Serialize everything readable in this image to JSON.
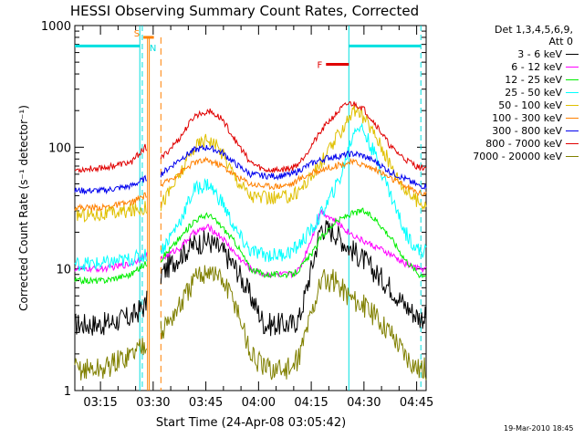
{
  "chart_data": {
    "type": "line",
    "title": "HESSI Observing Summary Count Rates, Corrected",
    "xlabel": "Start Time (24-Apr-08 03:05:42)",
    "ylabel": "Corrected Count Rate (s⁻¹ detector⁻¹)",
    "x_unit": "minutes after 03:05:42",
    "xlim": [
      2,
      102
    ],
    "ylim": [
      1,
      1000
    ],
    "y_scale": "log",
    "x_ticks": [
      {
        "x": 9.3,
        "label": "03:15"
      },
      {
        "x": 24.3,
        "label": "03:30"
      },
      {
        "x": 39.3,
        "label": "03:45"
      },
      {
        "x": 54.3,
        "label": "04:00"
      },
      {
        "x": 69.3,
        "label": "04:15"
      },
      {
        "x": 84.3,
        "label": "04:30"
      },
      {
        "x": 99.3,
        "label": "04:45"
      }
    ],
    "y_ticks": [
      {
        "y": 1,
        "label": "1"
      },
      {
        "y": 10,
        "label": "10"
      },
      {
        "y": 100,
        "label": "100"
      },
      {
        "y": 1000,
        "label": "1000"
      }
    ],
    "legend_header": [
      "Det 1,3,4,5,6,9,",
      "Att 0"
    ],
    "legend_position": "right, outside plot",
    "data_gaps": [
      [
        22.5,
        26.5
      ]
    ],
    "series": [
      {
        "name": "3 - 6 keV",
        "color": "#000000",
        "x": [
          2,
          10,
          18,
          22,
          26.5,
          32,
          36,
          40,
          44,
          48,
          52,
          56,
          60,
          64,
          66,
          70,
          72,
          76,
          80,
          84,
          88,
          92,
          96,
          100
        ],
        "y": [
          3.5,
          3.5,
          4,
          5,
          9,
          13,
          16,
          17,
          14,
          10,
          6,
          3.5,
          3.5,
          3.5,
          4,
          12,
          22,
          20,
          15,
          12,
          9,
          7,
          5,
          4
        ]
      },
      {
        "name": "6 - 12 keV",
        "color": "#ff00ff",
        "x": [
          2,
          10,
          18,
          22,
          26.5,
          32,
          36,
          40,
          44,
          48,
          52,
          56,
          60,
          64,
          66,
          70,
          72,
          76,
          80,
          84,
          88,
          92,
          96,
          100
        ],
        "y": [
          10,
          10,
          11,
          13,
          12,
          15,
          20,
          22,
          18,
          13,
          10,
          9,
          9,
          9,
          10,
          20,
          30,
          25,
          20,
          17,
          15,
          13,
          11,
          10
        ]
      },
      {
        "name": "12 - 25 keV",
        "color": "#00ee00",
        "x": [
          2,
          10,
          18,
          22,
          26.5,
          32,
          36,
          40,
          44,
          48,
          52,
          56,
          60,
          64,
          66,
          70,
          72,
          76,
          80,
          84,
          88,
          92,
          96,
          100
        ],
        "y": [
          8,
          8,
          9,
          11,
          12,
          18,
          25,
          28,
          22,
          16,
          10,
          9,
          9,
          9,
          10,
          14,
          18,
          24,
          28,
          30,
          25,
          18,
          12,
          9
        ]
      },
      {
        "name": "25 - 50 keV",
        "color": "#00ffff",
        "x": [
          2,
          10,
          18,
          22,
          26.5,
          32,
          36,
          40,
          44,
          48,
          52,
          56,
          60,
          64,
          66,
          70,
          74,
          78,
          80,
          82,
          84,
          88,
          92,
          96,
          100
        ],
        "y": [
          11,
          11,
          12,
          13,
          14,
          25,
          45,
          50,
          35,
          20,
          14,
          13,
          13,
          14,
          16,
          22,
          35,
          60,
          100,
          150,
          140,
          80,
          40,
          20,
          14
        ]
      },
      {
        "name": "50 - 100 keV",
        "color": "#e0c000",
        "x": [
          2,
          10,
          18,
          22,
          26.5,
          32,
          36,
          40,
          44,
          48,
          52,
          56,
          60,
          64,
          66,
          70,
          74,
          78,
          80,
          82,
          84,
          88,
          92,
          96,
          100
        ],
        "y": [
          28,
          28,
          30,
          32,
          34,
          60,
          100,
          120,
          90,
          55,
          40,
          38,
          38,
          40,
          45,
          60,
          90,
          140,
          180,
          200,
          180,
          120,
          70,
          45,
          35
        ]
      },
      {
        "name": "100 - 300 keV",
        "color": "#ff8000",
        "x": [
          2,
          10,
          18,
          22,
          26.5,
          32,
          36,
          40,
          44,
          48,
          52,
          56,
          60,
          64,
          66,
          70,
          74,
          78,
          80,
          82,
          84,
          88,
          92,
          96,
          100
        ],
        "y": [
          32,
          32,
          35,
          40,
          48,
          62,
          75,
          78,
          70,
          58,
          50,
          48,
          48,
          50,
          55,
          62,
          68,
          72,
          75,
          75,
          72,
          65,
          55,
          48,
          42
        ]
      },
      {
        "name": "300 - 800 keV",
        "color": "#0000ee",
        "x": [
          2,
          10,
          18,
          22,
          26.5,
          32,
          36,
          40,
          44,
          48,
          52,
          56,
          60,
          64,
          66,
          70,
          74,
          78,
          80,
          82,
          84,
          88,
          92,
          96,
          100
        ],
        "y": [
          44,
          44,
          48,
          55,
          60,
          80,
          95,
          100,
          90,
          72,
          60,
          58,
          58,
          60,
          65,
          75,
          82,
          85,
          88,
          88,
          85,
          75,
          62,
          55,
          48
        ]
      },
      {
        "name": "800 - 7000 keV",
        "color": "#e00000",
        "x": [
          2,
          10,
          18,
          22,
          26.5,
          32,
          36,
          40,
          44,
          48,
          52,
          56,
          60,
          64,
          66,
          70,
          74,
          78,
          80,
          82,
          84,
          88,
          92,
          96,
          100
        ],
        "y": [
          65,
          68,
          75,
          100,
          80,
          120,
          180,
          200,
          170,
          110,
          75,
          65,
          65,
          68,
          75,
          110,
          160,
          210,
          230,
          225,
          210,
          150,
          100,
          80,
          68
        ]
      },
      {
        "name": "7000 - 20000 keV",
        "color": "#808000",
        "x": [
          2,
          10,
          18,
          22,
          26.5,
          32,
          36,
          40,
          44,
          48,
          52,
          56,
          60,
          64,
          66,
          70,
          72,
          76,
          80,
          84,
          88,
          92,
          96,
          100
        ],
        "y": [
          1.5,
          1.5,
          2,
          2.5,
          3,
          5,
          8,
          10,
          8,
          5,
          2,
          1.5,
          1.5,
          1.5,
          2,
          5,
          8,
          8,
          6,
          5,
          4,
          3,
          2,
          1.5
        ]
      }
    ],
    "markers": {
      "saa": {
        "label": "S",
        "color": "#ff8000",
        "x": [
          21.5,
          24.5
        ],
        "y": 800
      },
      "night": {
        "label": "N",
        "color": "#00e0e0",
        "x": [
          21.0,
          23.0
        ],
        "y": 650
      },
      "flare": {
        "label": "F",
        "color": "#e00000",
        "x": [
          73.5,
          80
        ],
        "y": 480
      },
      "cyan_bars": [
        [
          2,
          20.5
        ],
        [
          80,
          100.5
        ]
      ],
      "cyan_bar_y": 680,
      "cyan_solid_x": [
        20.5,
        80
      ],
      "cyan_dashed_x": [
        21.2,
        100.5
      ],
      "orange_solid_x": [
        22.7,
        23.2
      ],
      "orange_dashed_x": [
        26.5
      ]
    }
  },
  "footer_stamp": "19-Mar-2010 18:45"
}
